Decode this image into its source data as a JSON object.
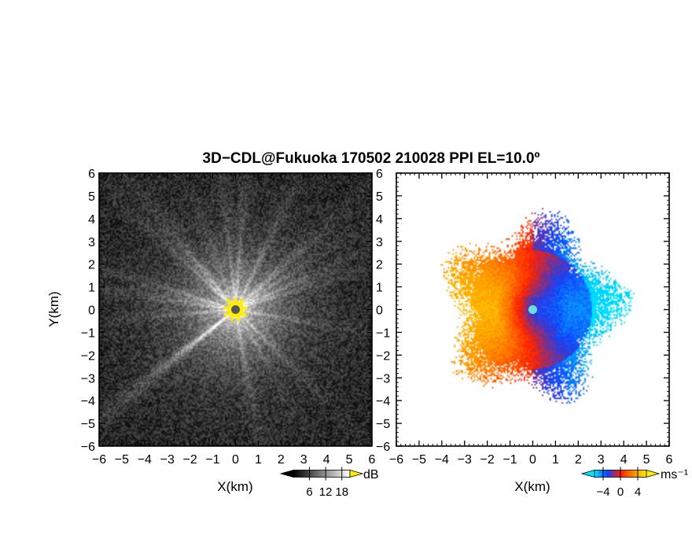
{
  "chart_data": {
    "title": "3D−CDL@Fukuoka 170502 210028 PPI EL=10.0º",
    "panels": [
      {
        "type": "heatmap",
        "quantity": "backscatter intensity",
        "xlabel": "X(km)",
        "ylabel": "Y(km)",
        "xlim": [
          -6,
          6
        ],
        "ylim": [
          -6,
          6
        ],
        "x_ticks": [
          "−6",
          "−5",
          "−4",
          "−3",
          "−2",
          "−1",
          "0",
          "1",
          "2",
          "3",
          "4",
          "5",
          "6"
        ],
        "y_ticks": [
          "−6",
          "−5",
          "−4",
          "−3",
          "−2",
          "−1",
          "0",
          "1",
          "2",
          "3",
          "4",
          "5",
          "6"
        ],
        "colorbar": {
          "unit": "dB",
          "ticks": [
            "6",
            "12",
            "18"
          ],
          "tick_values": [
            6,
            12,
            18
          ],
          "range": [
            0,
            21
          ],
          "colors": [
            "#000000",
            "#ffffff"
          ],
          "over_color": "#ffee00"
        },
        "pattern": "radial rays from origin, bright white within ~2 km, dark noisy beyond ~4 km, saturated (yellow) core within ~0.5 km",
        "center_marker_color": "#555555"
      },
      {
        "type": "heatmap",
        "quantity": "Doppler velocity",
        "xlabel": "X(km)",
        "xlim": [
          -6,
          6
        ],
        "ylim": [
          -6,
          6
        ],
        "x_ticks": [
          "−6",
          "−5",
          "−4",
          "−3",
          "−2",
          "−1",
          "0",
          "1",
          "2",
          "3",
          "4",
          "5",
          "6"
        ],
        "y_ticks": [
          "−6",
          "−5",
          "−4",
          "−3",
          "−2",
          "−1",
          "0",
          "1",
          "2",
          "3",
          "4",
          "5",
          "6"
        ],
        "colorbar": {
          "unit": "ms⁻¹",
          "ticks": [
            "−4",
            "0",
            "4"
          ],
          "tick_values": [
            -4,
            0,
            4
          ],
          "range": [
            -6,
            6
          ],
          "colors": [
            "#00e5ff",
            "#1040ff",
            "#ff2000",
            "#ff8c00",
            "#ffee00"
          ]
        },
        "pattern": "approaching (blue) on the east half and near the center, receding (red/yellow) on the west half; echo limited to ~4 km radius",
        "center_marker_color": "#66e0e0"
      }
    ]
  }
}
